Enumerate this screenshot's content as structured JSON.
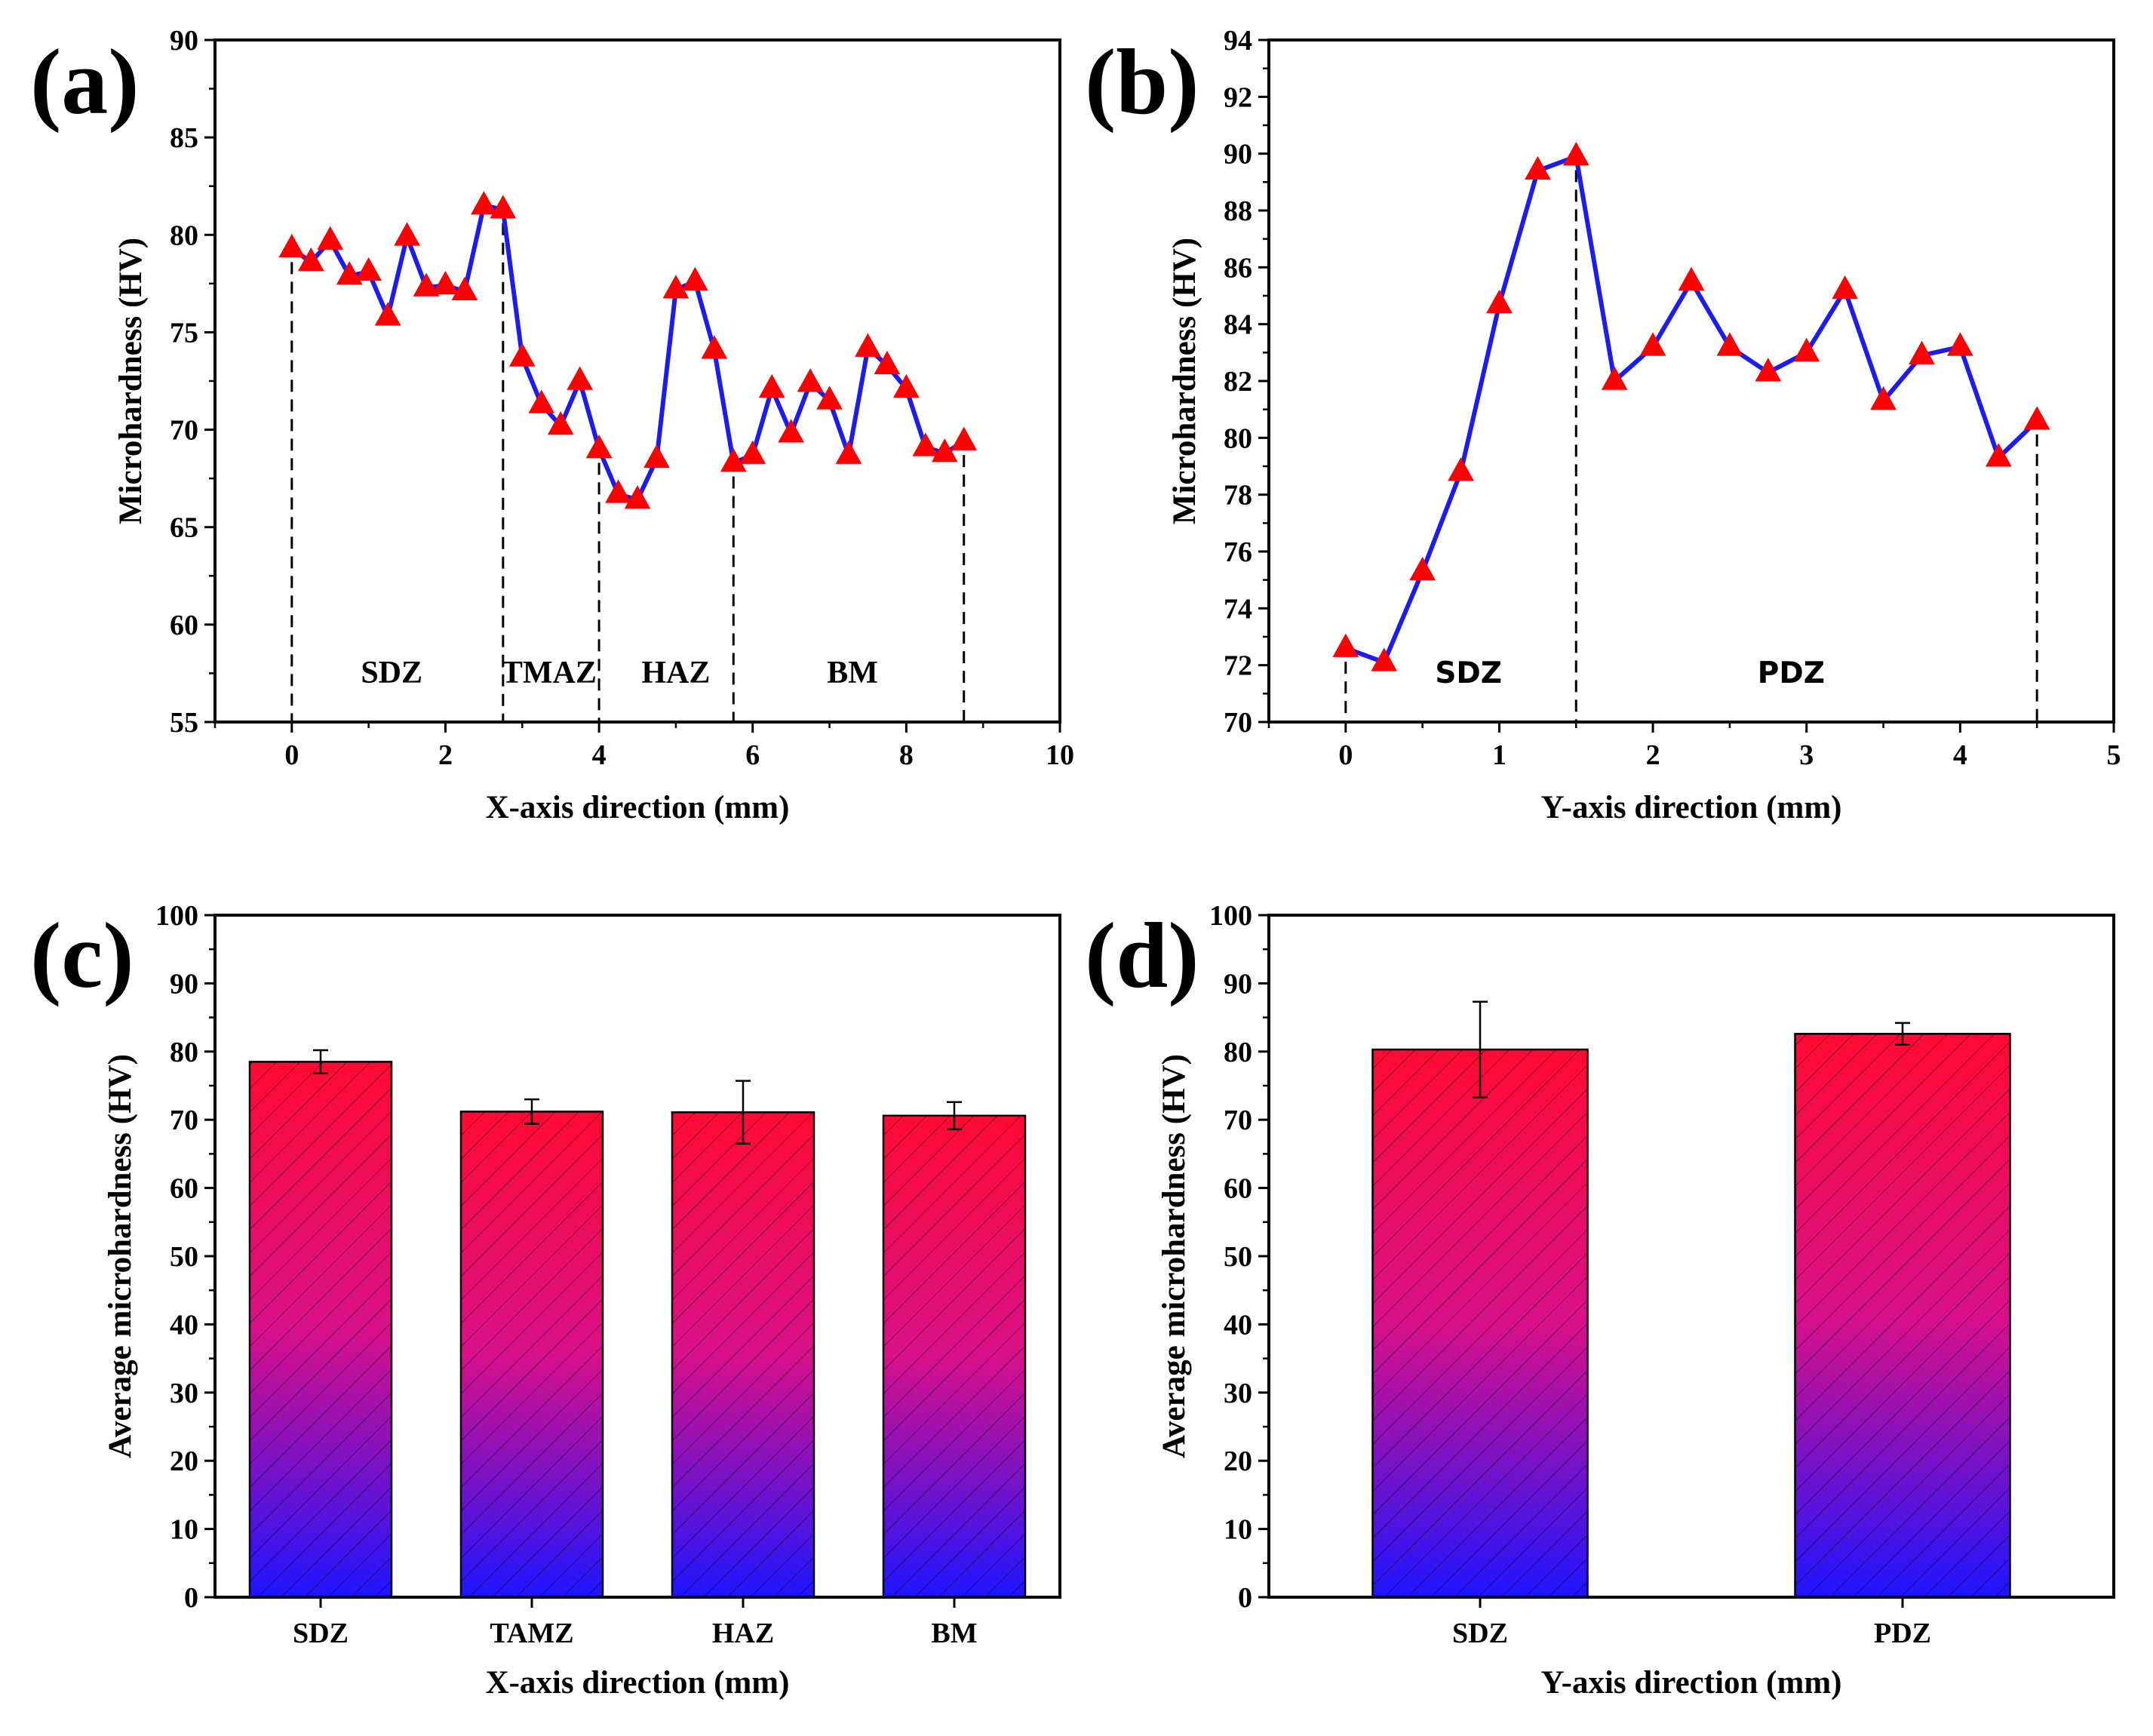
{
  "colors": {
    "line": "#1c1cf2",
    "marker": "#ff0000",
    "bar_top": "#ff0a32",
    "bar_bottom": "#1e14ff",
    "axis": "#000000"
  },
  "panels": {
    "a": {
      "letter": "(a)"
    },
    "b": {
      "letter": "(b)"
    },
    "c": {
      "letter": "(c)"
    },
    "d": {
      "letter": "(d)"
    }
  },
  "chart_data": [
    {
      "id": "a",
      "type": "line",
      "marker": "triangle",
      "xlabel": "X-axis direction (mm)",
      "ylabel": "Microhardness (HV)",
      "xlim": [
        -1,
        10
      ],
      "ylim": [
        55,
        90
      ],
      "xticks": [
        "0",
        "2",
        "4",
        "6",
        "8",
        "10"
      ],
      "yticks": [
        "55",
        "60",
        "65",
        "70",
        "75",
        "80",
        "85",
        "90"
      ],
      "x": [
        0,
        0.25,
        0.5,
        0.75,
        1.0,
        1.25,
        1.5,
        1.75,
        2.0,
        2.25,
        2.5,
        2.75,
        3.0,
        3.25,
        3.5,
        3.75,
        4.0,
        4.25,
        4.5,
        4.75,
        5.0,
        5.25,
        5.5,
        5.75,
        6.0,
        6.25,
        6.5,
        6.75,
        7.0,
        7.25,
        7.5,
        7.75,
        8.0,
        8.25,
        8.5,
        8.75
      ],
      "y": [
        79.3,
        78.6,
        79.7,
        77.9,
        78.1,
        75.8,
        79.9,
        77.3,
        77.4,
        77.1,
        81.5,
        81.3,
        73.7,
        71.3,
        70.2,
        72.5,
        69.0,
        66.7,
        66.4,
        68.5,
        77.2,
        77.6,
        74.1,
        68.3,
        68.7,
        72.1,
        69.8,
        72.4,
        71.5,
        68.7,
        74.2,
        73.3,
        72.1,
        69.1,
        68.8,
        69.4
      ],
      "dividers": [
        0,
        2.75,
        4.0,
        5.75,
        8.75
      ],
      "zones": [
        {
          "label": "SDZ",
          "x": 1.3
        },
        {
          "label": "TMAZ",
          "x": 3.35
        },
        {
          "label": "HAZ",
          "x": 5.0
        },
        {
          "label": "BM",
          "x": 7.3
        }
      ]
    },
    {
      "id": "b",
      "type": "line",
      "marker": "triangle",
      "xlabel": "Y-axis direction (mm)",
      "ylabel": "Microhardness (HV)",
      "xlim": [
        -0.5,
        5
      ],
      "ylim": [
        70,
        94
      ],
      "xticks": [
        "0",
        "1",
        "2",
        "3",
        "4",
        "5"
      ],
      "yticks": [
        "70",
        "72",
        "74",
        "76",
        "78",
        "80",
        "82",
        "84",
        "86",
        "88",
        "90",
        "92",
        "94"
      ],
      "x": [
        0,
        0.25,
        0.5,
        0.75,
        1.0,
        1.25,
        1.5,
        1.75,
        2.0,
        2.25,
        2.5,
        2.75,
        3.0,
        3.25,
        3.5,
        3.75,
        4.0,
        4.25,
        4.5
      ],
      "y": [
        72.6,
        72.1,
        75.3,
        78.8,
        84.7,
        89.4,
        89.9,
        82.0,
        83.2,
        85.5,
        83.2,
        82.3,
        83.0,
        85.2,
        81.3,
        82.9,
        83.2,
        79.3,
        80.6
      ],
      "dividers": [
        0,
        1.5,
        4.5
      ],
      "zones": [
        {
          "label": "SDZ",
          "x": 0.8
        },
        {
          "label": "PDZ",
          "x": 2.9
        }
      ]
    },
    {
      "id": "c",
      "type": "bar",
      "xlabel": "X-axis direction (mm)",
      "ylabel": "Average microhardness (HV)",
      "ylim": [
        0,
        100
      ],
      "yticks": [
        "0",
        "10",
        "20",
        "30",
        "40",
        "50",
        "60",
        "70",
        "80",
        "90",
        "100"
      ],
      "categories": [
        "SDZ",
        "TAMZ",
        "HAZ",
        "BM"
      ],
      "values": [
        78.5,
        71.2,
        71.1,
        70.6
      ],
      "errors": [
        1.7,
        1.8,
        4.6,
        2.0
      ]
    },
    {
      "id": "d",
      "type": "bar",
      "xlabel": "Y-axis direction (mm)",
      "ylabel": "Average microhardness (HV)",
      "ylim": [
        0,
        100
      ],
      "yticks": [
        "0",
        "10",
        "20",
        "30",
        "40",
        "50",
        "60",
        "70",
        "80",
        "90",
        "100"
      ],
      "categories": [
        "SDZ",
        "PDZ"
      ],
      "values": [
        80.3,
        82.6
      ],
      "errors": [
        7.0,
        1.6
      ]
    }
  ]
}
